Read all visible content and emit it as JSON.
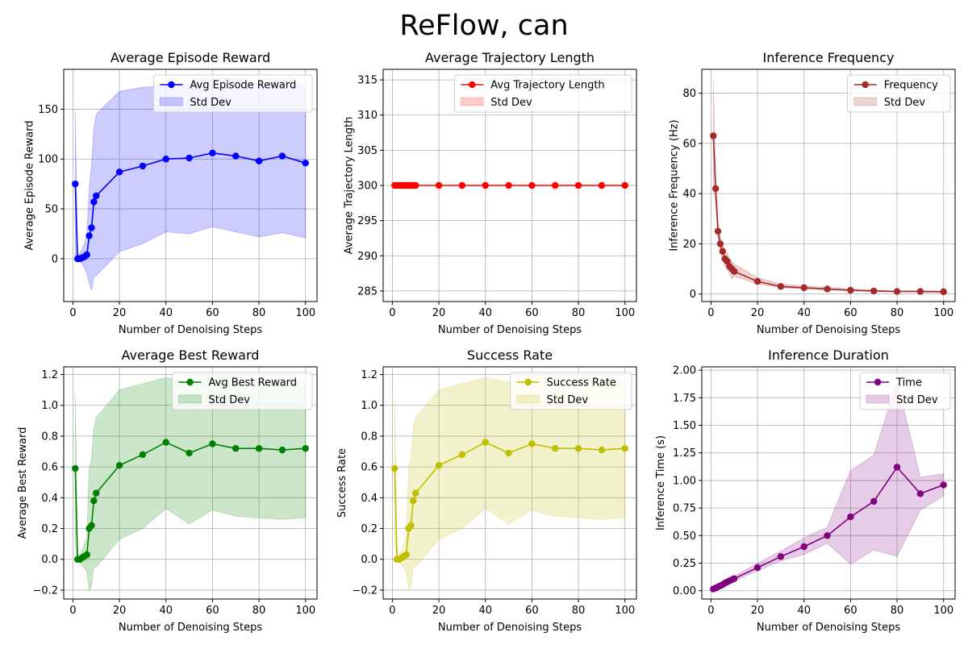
{
  "suptitle": "ReFlow, can",
  "chart_data": [
    {
      "type": "line",
      "title": "Average Episode Reward",
      "xlabel": "Number of Denoising Steps",
      "ylabel": "Average Episode Reward",
      "xlim": [
        -3.95,
        104.95
      ],
      "ylim": [
        -43,
        190
      ],
      "xticks": [
        0,
        20,
        40,
        60,
        80,
        100
      ],
      "yticks": [
        0,
        50,
        100,
        150
      ],
      "ytick_labels": [
        "0",
        "50",
        "100",
        "150"
      ],
      "grid": true,
      "legend_position": "top-right",
      "color": "#0000ff",
      "series": [
        {
          "name": "Avg Episode Reward",
          "x": [
            1,
            2,
            3,
            4,
            5,
            6,
            7,
            8,
            9,
            10,
            20,
            30,
            40,
            50,
            60,
            70,
            80,
            90,
            100
          ],
          "y": [
            75,
            0,
            0,
            1,
            2,
            4,
            23,
            31,
            57,
            63,
            87,
            93,
            100,
            101,
            106,
            103,
            98,
            103,
            96
          ]
        }
      ],
      "band": {
        "name": "Std Dev",
        "x": [
          1,
          2,
          3,
          4,
          5,
          6,
          7,
          8,
          9,
          10,
          20,
          30,
          40,
          50,
          60,
          70,
          80,
          90,
          100
        ],
        "lower": [
          0,
          -3,
          -3,
          -5,
          -10,
          -15,
          -25,
          -32,
          -18,
          -17,
          7,
          15,
          27,
          25,
          32,
          27,
          22,
          26,
          21
        ],
        "upper": [
          148,
          5,
          5,
          10,
          15,
          25,
          70,
          95,
          130,
          145,
          168,
          172,
          173,
          176,
          180,
          179,
          175,
          180,
          172
        ]
      }
    },
    {
      "type": "line",
      "title": "Average Trajectory Length",
      "xlabel": "Number of Denoising Steps",
      "ylabel": "Average Trajectory Length",
      "xlim": [
        -3.95,
        104.95
      ],
      "ylim": [
        283.5,
        316.5
      ],
      "xticks": [
        0,
        20,
        40,
        60,
        80,
        100
      ],
      "yticks": [
        285,
        290,
        295,
        300,
        305,
        310,
        315
      ],
      "ytick_labels": [
        "285",
        "290",
        "295",
        "300",
        "305",
        "310",
        "315"
      ],
      "grid": true,
      "legend_position": "top-right",
      "color": "#ff0000",
      "series": [
        {
          "name": "Avg Trajectory Length",
          "x": [
            1,
            2,
            3,
            4,
            5,
            6,
            7,
            8,
            9,
            10,
            20,
            30,
            40,
            50,
            60,
            70,
            80,
            90,
            100
          ],
          "y": [
            300,
            300,
            300,
            300,
            300,
            300,
            300,
            300,
            300,
            300,
            300,
            300,
            300,
            300,
            300,
            300,
            300,
            300,
            300
          ]
        }
      ],
      "band": {
        "name": "Std Dev",
        "x": [
          1,
          100
        ],
        "lower": [
          300,
          300
        ],
        "upper": [
          300,
          300
        ]
      }
    },
    {
      "type": "line",
      "title": "Inference Frequency",
      "xlabel": "Number of Denoising Steps",
      "ylabel": "Inference Frequency (Hz)",
      "xlim": [
        -3.95,
        104.95
      ],
      "ylim": [
        -3,
        89.5
      ],
      "xticks": [
        0,
        20,
        40,
        60,
        80,
        100
      ],
      "yticks": [
        0,
        20,
        40,
        60,
        80
      ],
      "ytick_labels": [
        "0",
        "20",
        "40",
        "60",
        "80"
      ],
      "grid": true,
      "legend_position": "top-right",
      "color": "#a52a2a",
      "series": [
        {
          "name": "Frequency",
          "x": [
            1,
            2,
            3,
            4,
            5,
            6,
            7,
            8,
            9,
            10,
            20,
            30,
            40,
            50,
            60,
            70,
            80,
            90,
            100
          ],
          "y": [
            63,
            42,
            25,
            20,
            17,
            14,
            13,
            11,
            10,
            9,
            5,
            3,
            2.5,
            2,
            1.5,
            1.2,
            1,
            1,
            0.9
          ]
        }
      ],
      "band": {
        "name": "Std Dev",
        "x": [
          1,
          2,
          3,
          4,
          5,
          6,
          7,
          8,
          9,
          10,
          20,
          30,
          40,
          50,
          60,
          70,
          80,
          90,
          100
        ],
        "lower": [
          42,
          36,
          22,
          17,
          14,
          11,
          10,
          8,
          6,
          7,
          4,
          2.5,
          2,
          1.6,
          1.2,
          1,
          0.8,
          0.8,
          0.7
        ],
        "upper": [
          85,
          48,
          30,
          23,
          20,
          17,
          16,
          14,
          13,
          12,
          6.5,
          4,
          3.3,
          2.7,
          2,
          1.6,
          1.3,
          1.3,
          1.2
        ]
      }
    },
    {
      "type": "line",
      "title": "Average Best Reward",
      "xlabel": "Number of Denoising Steps",
      "ylabel": "Average Best Reward",
      "xlim": [
        -3.95,
        104.95
      ],
      "ylim": [
        -0.258,
        1.25
      ],
      "xticks": [
        0,
        20,
        40,
        60,
        80,
        100
      ],
      "yticks": [
        -0.2,
        0.0,
        0.2,
        0.4,
        0.6,
        0.8,
        1.0,
        1.2
      ],
      "ytick_labels": [
        "−0.2",
        "0.0",
        "0.2",
        "0.4",
        "0.6",
        "0.8",
        "1.0",
        "1.2"
      ],
      "grid": true,
      "legend_position": "top-right",
      "color": "#008000",
      "series": [
        {
          "name": "Avg Best Reward",
          "x": [
            1,
            2,
            3,
            4,
            5,
            6,
            7,
            8,
            9,
            10,
            20,
            30,
            40,
            50,
            60,
            70,
            80,
            90,
            100
          ],
          "y": [
            0.59,
            0,
            0,
            0.01,
            0.02,
            0.03,
            0.2,
            0.22,
            0.38,
            0.43,
            0.61,
            0.68,
            0.76,
            0.69,
            0.75,
            0.72,
            0.72,
            0.71,
            0.72
          ]
        }
      ],
      "band": {
        "name": "Std Dev",
        "x": [
          1,
          2,
          3,
          4,
          5,
          6,
          7,
          8,
          9,
          10,
          20,
          30,
          40,
          50,
          60,
          70,
          80,
          90,
          100
        ],
        "lower": [
          0.1,
          -0.02,
          -0.02,
          -0.04,
          -0.06,
          -0.08,
          -0.2,
          -0.17,
          -0.05,
          -0.05,
          0.13,
          0.2,
          0.33,
          0.23,
          0.32,
          0.28,
          0.27,
          0.26,
          0.27
        ],
        "upper": [
          1.08,
          0.03,
          0.03,
          0.06,
          0.1,
          0.15,
          0.6,
          0.65,
          0.85,
          0.92,
          1.1,
          1.14,
          1.18,
          1.15,
          1.19,
          1.18,
          1.17,
          1.17,
          1.16
        ]
      }
    },
    {
      "type": "line",
      "title": "Success Rate",
      "xlabel": "Number of Denoising Steps",
      "ylabel": "Success Rate",
      "xlim": [
        -3.95,
        104.95
      ],
      "ylim": [
        -0.258,
        1.25
      ],
      "xticks": [
        0,
        20,
        40,
        60,
        80,
        100
      ],
      "yticks": [
        -0.2,
        0.0,
        0.2,
        0.4,
        0.6,
        0.8,
        1.0,
        1.2
      ],
      "ytick_labels": [
        "−0.2",
        "0.0",
        "0.2",
        "0.4",
        "0.6",
        "0.8",
        "1.0",
        "1.2"
      ],
      "grid": true,
      "legend_position": "top-right",
      "color": "#bfbf00",
      "series": [
        {
          "name": "Success Rate",
          "x": [
            1,
            2,
            3,
            4,
            5,
            6,
            7,
            8,
            9,
            10,
            20,
            30,
            40,
            50,
            60,
            70,
            80,
            90,
            100
          ],
          "y": [
            0.59,
            0,
            0,
            0.01,
            0.02,
            0.03,
            0.2,
            0.22,
            0.38,
            0.43,
            0.61,
            0.68,
            0.76,
            0.69,
            0.75,
            0.72,
            0.72,
            0.71,
            0.72
          ]
        }
      ],
      "band": {
        "name": "Std Dev",
        "x": [
          1,
          2,
          3,
          4,
          5,
          6,
          7,
          8,
          9,
          10,
          20,
          30,
          40,
          50,
          60,
          70,
          80,
          90,
          100
        ],
        "lower": [
          0.1,
          -0.02,
          -0.02,
          -0.04,
          -0.06,
          -0.08,
          -0.2,
          -0.17,
          -0.05,
          -0.05,
          0.13,
          0.2,
          0.33,
          0.23,
          0.32,
          0.28,
          0.27,
          0.26,
          0.27
        ],
        "upper": [
          1.08,
          0.03,
          0.03,
          0.06,
          0.1,
          0.15,
          0.6,
          0.65,
          0.85,
          0.92,
          1.1,
          1.14,
          1.18,
          1.15,
          1.19,
          1.18,
          1.17,
          1.17,
          1.16
        ]
      }
    },
    {
      "type": "line",
      "title": "Inference Duration",
      "xlabel": "Number of Denoising Steps",
      "ylabel": "Inference Time (s)",
      "xlim": [
        -3.95,
        104.95
      ],
      "ylim": [
        -0.075,
        2.03
      ],
      "xticks": [
        0,
        20,
        40,
        60,
        80,
        100
      ],
      "yticks": [
        0.0,
        0.25,
        0.5,
        0.75,
        1.0,
        1.25,
        1.5,
        1.75,
        2.0
      ],
      "ytick_labels": [
        "0.00",
        "0.25",
        "0.50",
        "0.75",
        "1.00",
        "1.25",
        "1.50",
        "1.75",
        "2.00"
      ],
      "grid": true,
      "legend_position": "top-right",
      "color": "#800080",
      "series": [
        {
          "name": "Time",
          "x": [
            1,
            2,
            3,
            4,
            5,
            6,
            7,
            8,
            9,
            10,
            20,
            30,
            40,
            50,
            60,
            70,
            80,
            90,
            100
          ],
          "y": [
            0.016,
            0.025,
            0.035,
            0.045,
            0.055,
            0.07,
            0.08,
            0.09,
            0.1,
            0.11,
            0.21,
            0.31,
            0.4,
            0.5,
            0.67,
            0.81,
            1.12,
            0.88,
            0.96
          ]
        }
      ],
      "band": {
        "name": "Std Dev",
        "x": [
          1,
          2,
          3,
          4,
          5,
          6,
          7,
          8,
          9,
          10,
          20,
          30,
          40,
          50,
          60,
          70,
          80,
          90,
          100
        ],
        "lower": [
          0.01,
          0.018,
          0.026,
          0.034,
          0.042,
          0.055,
          0.063,
          0.071,
          0.08,
          0.09,
          0.18,
          0.27,
          0.33,
          0.43,
          0.24,
          0.37,
          0.31,
          0.73,
          0.86
        ],
        "upper": [
          0.025,
          0.035,
          0.045,
          0.057,
          0.068,
          0.085,
          0.097,
          0.11,
          0.12,
          0.13,
          0.25,
          0.36,
          0.48,
          0.58,
          1.09,
          1.23,
          1.9,
          1.03,
          1.06
        ]
      }
    }
  ]
}
